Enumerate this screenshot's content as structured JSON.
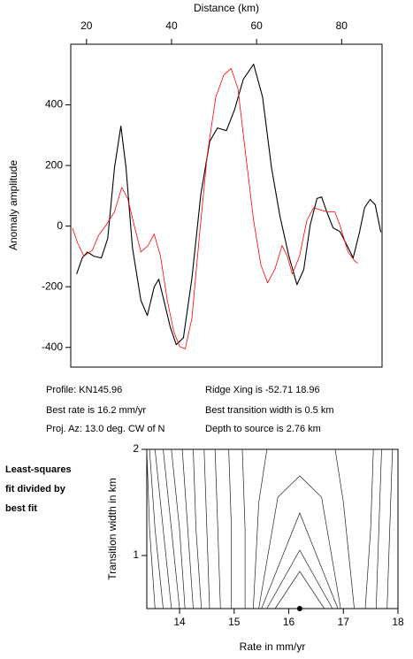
{
  "chart_data": [
    {
      "type": "line",
      "xlabel": "Distance (km)",
      "ylabel": "Anomaly amplitude",
      "xlim": [
        16.3,
        89.5
      ],
      "xticks": [
        20,
        40,
        60,
        80
      ],
      "ylim": [
        -465,
        600
      ],
      "yticks": [
        -400,
        -200,
        0,
        200,
        400
      ],
      "series": [
        {
          "color": "#000000",
          "x": [
            17.7,
            19,
            20.2,
            21.7,
            23.5,
            25,
            26.6,
            28.1,
            29.3,
            30.8,
            32.8,
            34.3,
            35.9,
            37,
            38.2,
            39.7,
            41.1,
            42.8,
            44.8,
            46.9,
            49,
            50.8,
            52.9,
            54.8,
            56.9,
            59.3,
            61.4,
            63.5,
            65.5,
            67.6,
            69.5,
            71.1,
            72.6,
            74.2,
            75.3,
            76.5,
            78,
            79.6,
            81.5,
            82.7,
            84.2,
            85.4,
            86.7,
            87.9,
            89.2
          ],
          "values": [
            -158,
            -105,
            -85,
            -99,
            -105,
            -41,
            193,
            330,
            193,
            -70,
            -245,
            -295,
            -201,
            -175,
            -245,
            -333,
            -391,
            -368,
            -172,
            105,
            280,
            324,
            315,
            383,
            485,
            534,
            426,
            193,
            32,
            -99,
            -193,
            -143,
            3,
            91,
            96,
            47,
            -6,
            -18,
            -70,
            -105,
            -20,
            61,
            88,
            70,
            -20
          ]
        },
        {
          "color": "#ff0000",
          "x": [
            16.7,
            17.9,
            19.4,
            21.4,
            22.9,
            24.6,
            26.6,
            28.3,
            29.7,
            31.2,
            32.8,
            34.5,
            35.9,
            37.4,
            39,
            40.5,
            41.9,
            43.2,
            44.8,
            46.5,
            48.4,
            50.4,
            52.3,
            54,
            55.6,
            57.3,
            59.3,
            61,
            62.6,
            64.3,
            66,
            67.2,
            68.4,
            70.1,
            71.8,
            73.4,
            75.1,
            76.7,
            78.4,
            79.6,
            81.5,
            83,
            83.8
          ],
          "values": [
            -6,
            -55,
            -99,
            -79,
            -29,
            3,
            47,
            128,
            91,
            3,
            -85,
            -64,
            -26,
            -99,
            -245,
            -347,
            -397,
            -405,
            -304,
            -41,
            236,
            426,
            499,
            520,
            455,
            251,
            18,
            -128,
            -187,
            -143,
            -64,
            -99,
            -158,
            -99,
            18,
            61,
            53,
            47,
            47,
            3,
            -85,
            -114,
            -123
          ]
        }
      ]
    },
    {
      "type": "contour",
      "xlabel": "Rate in mm/yr",
      "ylabel": "Transition width in km",
      "xlim": [
        13.4,
        18
      ],
      "xticks": [
        14,
        15,
        16,
        17,
        18
      ],
      "ylim": [
        0.5,
        2
      ],
      "yticks": [
        1,
        2
      ],
      "best": {
        "x": 16.2,
        "y": 0.5
      },
      "contours": [
        {
          "x": [
            13.55,
            13.45,
            13.4
          ],
          "y": [
            0.5,
            1.25,
            2
          ]
        },
        {
          "x": [
            13.7,
            13.55,
            13.45
          ],
          "y": [
            0.5,
            1.25,
            2
          ]
        },
        {
          "x": [
            13.85,
            13.7,
            13.55
          ],
          "y": [
            0.5,
            1.25,
            2
          ]
        },
        {
          "x": [
            14.0,
            13.85,
            13.7
          ],
          "y": [
            0.5,
            1.25,
            2
          ]
        },
        {
          "x": [
            14.1,
            14.0,
            13.85
          ],
          "y": [
            0.5,
            1.25,
            2
          ]
        },
        {
          "x": [
            14.25,
            14.15,
            14.05
          ],
          "y": [
            0.5,
            1.25,
            2
          ]
        },
        {
          "x": [
            14.4,
            14.3,
            14.25
          ],
          "y": [
            0.5,
            1.25,
            2
          ]
        },
        {
          "x": [
            14.55,
            14.5,
            14.45
          ],
          "y": [
            0.5,
            1.25,
            2
          ]
        },
        {
          "x": [
            14.75,
            14.7,
            14.65
          ],
          "y": [
            0.5,
            1.25,
            2
          ]
        },
        {
          "x": [
            14.95,
            14.95,
            14.9
          ],
          "y": [
            0.5,
            1.25,
            2
          ]
        },
        {
          "x": [
            15.2,
            15.2,
            15.15
          ],
          "y": [
            0.5,
            1.25,
            2
          ]
        },
        {
          "x": [
            15.35,
            15.45,
            15.6
          ],
          "y": [
            0.5,
            1.5,
            2
          ]
        },
        {
          "x": [
            15.75,
            16.2,
            16.65
          ],
          "y": [
            0.5,
            0.85,
            0.5
          ]
        },
        {
          "x": [
            15.6,
            16.2,
            16.8
          ],
          "y": [
            0.5,
            1.05,
            0.5
          ]
        },
        {
          "x": [
            15.5,
            16.2,
            16.9
          ],
          "y": [
            0.5,
            1.4,
            0.5
          ]
        },
        {
          "x": [
            15.45,
            15.8,
            16.2,
            16.6,
            16.95
          ],
          "y": [
            0.5,
            1.55,
            1.75,
            1.55,
            0.5
          ]
        },
        {
          "x": [
            17.2,
            17.0,
            16.85
          ],
          "y": [
            0.5,
            1.5,
            2
          ]
        },
        {
          "x": [
            17.4,
            17.5,
            17.55
          ],
          "y": [
            0.5,
            1.25,
            2
          ]
        },
        {
          "x": [
            17.6,
            17.65,
            17.7
          ],
          "y": [
            0.5,
            1.25,
            2
          ]
        },
        {
          "x": [
            17.8,
            17.85,
            17.9
          ],
          "y": [
            0.5,
            1.25,
            2
          ]
        }
      ]
    }
  ],
  "info": {
    "profile": "Profile: KN145.96",
    "rate": "Best rate is 16.2 mm/yr",
    "azimuth": "Proj. Az: 13.0 deg. CW of N",
    "ridge": "Ridge Xing is -52.71 18.96",
    "width": "Best transition width is 0.5 km",
    "depth": "Depth to source is   2.76 km",
    "legend": [
      "Least-squares",
      "fit divided by",
      "best fit"
    ]
  }
}
